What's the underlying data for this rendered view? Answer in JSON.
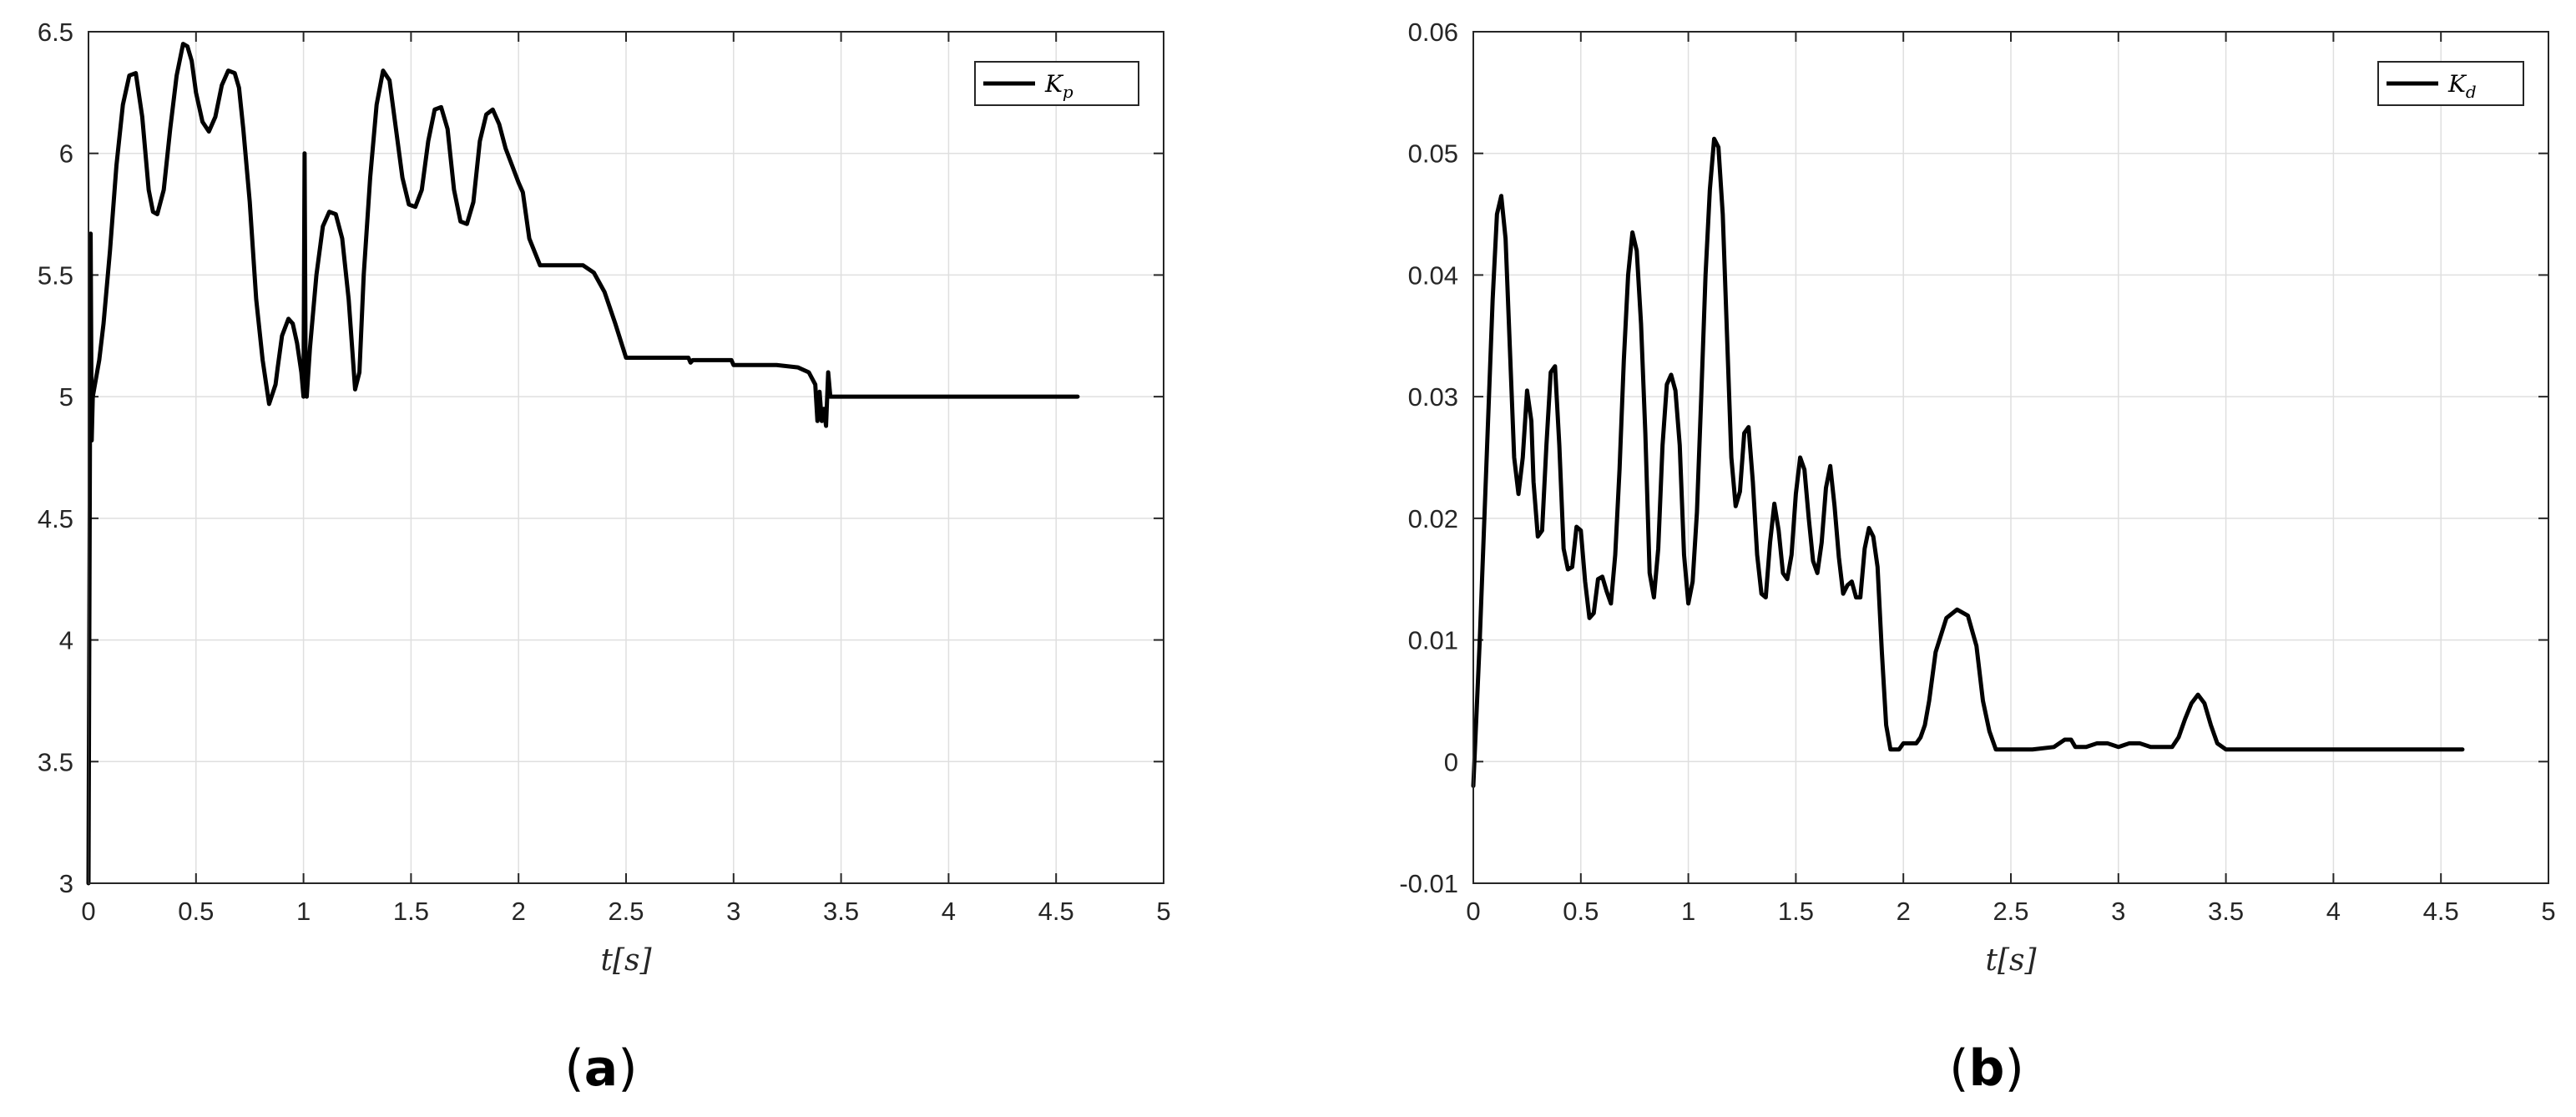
{
  "chart_data": [
    {
      "type": "line",
      "panel_label": "(a)",
      "panel_letter": "a",
      "xlabel": "t[s]",
      "ylabel": "",
      "xlim": [
        0,
        5
      ],
      "ylim": [
        3,
        6.5
      ],
      "xticks": [
        0,
        0.5,
        1,
        1.5,
        2,
        2.5,
        3,
        3.5,
        4,
        4.5,
        5
      ],
      "xtick_labels": [
        "0",
        "0.5",
        "1",
        "1.5",
        "2",
        "2.5",
        "3",
        "3.5",
        "4",
        "4.5",
        "5"
      ],
      "yticks": [
        3,
        3.5,
        4,
        4.5,
        5,
        5.5,
        6,
        6.5
      ],
      "ytick_labels": [
        "3",
        "3.5",
        "4",
        "4.5",
        "5",
        "5.5",
        "6",
        "6.5"
      ],
      "grid": true,
      "legend": "top-right",
      "series": [
        {
          "name": "Kp",
          "legend_main": "K",
          "legend_sub": "p",
          "color": "#000000",
          "x": [
            0,
            0.01,
            0.015,
            0.02,
            0.03,
            0.04,
            0.05,
            0.07,
            0.1,
            0.13,
            0.16,
            0.19,
            0.22,
            0.25,
            0.28,
            0.3,
            0.32,
            0.35,
            0.38,
            0.41,
            0.44,
            0.46,
            0.48,
            0.5,
            0.53,
            0.56,
            0.59,
            0.62,
            0.65,
            0.68,
            0.7,
            0.72,
            0.75,
            0.78,
            0.81,
            0.84,
            0.87,
            0.88,
            0.9,
            0.93,
            0.95,
            0.97,
            0.99,
            1.0,
            1.005,
            1.01,
            1.015,
            1.03,
            1.06,
            1.09,
            1.12,
            1.15,
            1.18,
            1.21,
            1.24,
            1.26,
            1.28,
            1.31,
            1.34,
            1.37,
            1.4,
            1.43,
            1.46,
            1.49,
            1.52,
            1.55,
            1.58,
            1.61,
            1.64,
            1.67,
            1.7,
            1.73,
            1.76,
            1.79,
            1.82,
            1.85,
            1.88,
            1.91,
            1.94,
            1.97,
            2.0,
            2.02,
            2.05,
            2.1,
            2.15,
            2.2,
            2.25,
            2.3,
            2.35,
            2.4,
            2.45,
            2.5,
            2.6,
            2.7,
            2.79,
            2.8,
            2.81,
            2.9,
            2.99,
            3.0,
            3.1,
            3.2,
            3.3,
            3.35,
            3.38,
            3.39,
            3.4,
            3.41,
            3.42,
            3.43,
            3.44,
            3.45,
            3.5,
            4.0,
            4.6
          ],
          "y": [
            3.0,
            5.67,
            4.82,
            5.0,
            5.05,
            5.1,
            5.15,
            5.3,
            5.6,
            5.95,
            6.2,
            6.32,
            6.33,
            6.15,
            5.85,
            5.76,
            5.75,
            5.85,
            6.1,
            6.32,
            6.45,
            6.44,
            6.38,
            6.25,
            6.13,
            6.09,
            6.15,
            6.28,
            6.34,
            6.33,
            6.27,
            6.1,
            5.8,
            5.4,
            5.15,
            4.97,
            5.05,
            5.12,
            5.25,
            5.32,
            5.3,
            5.22,
            5.1,
            5.0,
            6.0,
            5.05,
            5.0,
            5.2,
            5.5,
            5.7,
            5.76,
            5.75,
            5.65,
            5.4,
            5.03,
            5.1,
            5.5,
            5.9,
            6.2,
            6.34,
            6.3,
            6.1,
            5.9,
            5.79,
            5.78,
            5.85,
            6.05,
            6.18,
            6.19,
            6.1,
            5.85,
            5.72,
            5.71,
            5.8,
            6.05,
            6.16,
            6.18,
            6.12,
            6.02,
            5.95,
            5.88,
            5.84,
            5.65,
            5.54,
            5.54,
            5.54,
            5.54,
            5.54,
            5.51,
            5.43,
            5.3,
            5.16,
            5.16,
            5.16,
            5.16,
            5.14,
            5.15,
            5.15,
            5.15,
            5.13,
            5.13,
            5.13,
            5.12,
            5.1,
            5.05,
            4.9,
            5.02,
            4.9,
            4.95,
            4.88,
            5.1,
            5.0,
            5.0,
            5.0,
            5.0
          ]
        }
      ]
    },
    {
      "type": "line",
      "panel_label": "(b)",
      "panel_letter": "b",
      "xlabel": "t[s]",
      "ylabel": "",
      "xlim": [
        0,
        5
      ],
      "ylim": [
        -0.01,
        0.06
      ],
      "xticks": [
        0,
        0.5,
        1,
        1.5,
        2,
        2.5,
        3,
        3.5,
        4,
        4.5,
        5
      ],
      "xtick_labels": [
        "0",
        "0.5",
        "1",
        "1.5",
        "2",
        "2.5",
        "3",
        "3.5",
        "4",
        "4.5",
        "5"
      ],
      "yticks": [
        -0.01,
        0,
        0.01,
        0.02,
        0.03,
        0.04,
        0.05,
        0.06
      ],
      "ytick_labels": [
        "-0.01",
        "0",
        "0.01",
        "0.02",
        "0.03",
        "0.04",
        "0.05",
        "0.06"
      ],
      "grid": true,
      "legend": "top-right",
      "series": [
        {
          "name": "Kd",
          "legend_main": "K",
          "legend_sub": "d",
          "color": "#000000",
          "x": [
            0,
            0.03,
            0.06,
            0.09,
            0.11,
            0.13,
            0.15,
            0.17,
            0.19,
            0.21,
            0.23,
            0.25,
            0.27,
            0.28,
            0.3,
            0.32,
            0.34,
            0.36,
            0.38,
            0.4,
            0.42,
            0.44,
            0.46,
            0.48,
            0.5,
            0.52,
            0.54,
            0.56,
            0.58,
            0.6,
            0.62,
            0.64,
            0.66,
            0.68,
            0.7,
            0.72,
            0.74,
            0.76,
            0.78,
            0.8,
            0.82,
            0.84,
            0.86,
            0.88,
            0.9,
            0.92,
            0.94,
            0.96,
            0.98,
            1.0,
            1.02,
            1.04,
            1.06,
            1.08,
            1.1,
            1.12,
            1.14,
            1.16,
            1.18,
            1.2,
            1.22,
            1.24,
            1.26,
            1.28,
            1.3,
            1.32,
            1.34,
            1.36,
            1.38,
            1.4,
            1.42,
            1.44,
            1.46,
            1.48,
            1.5,
            1.52,
            1.54,
            1.56,
            1.58,
            1.6,
            1.62,
            1.64,
            1.66,
            1.68,
            1.7,
            1.72,
            1.74,
            1.76,
            1.78,
            1.8,
            1.82,
            1.84,
            1.86,
            1.88,
            1.9,
            1.92,
            1.94,
            1.96,
            1.98,
            2.0,
            2.02,
            2.04,
            2.06,
            2.08,
            2.1,
            2.12,
            2.15,
            2.2,
            2.25,
            2.3,
            2.34,
            2.37,
            2.4,
            2.43,
            2.46,
            2.49,
            2.52,
            2.55,
            2.6,
            2.7,
            2.75,
            2.78,
            2.8,
            2.82,
            2.85,
            2.9,
            2.95,
            3.0,
            3.05,
            3.1,
            3.15,
            3.2,
            3.25,
            3.28,
            3.31,
            3.34,
            3.37,
            3.4,
            3.43,
            3.46,
            3.5,
            3.6,
            4.0,
            4.6
          ],
          "y": [
            -0.002,
            0.01,
            0.024,
            0.038,
            0.045,
            0.0465,
            0.043,
            0.034,
            0.025,
            0.022,
            0.025,
            0.0305,
            0.028,
            0.023,
            0.0185,
            0.019,
            0.026,
            0.032,
            0.0325,
            0.026,
            0.0175,
            0.0158,
            0.016,
            0.0193,
            0.019,
            0.0148,
            0.0118,
            0.0122,
            0.015,
            0.0152,
            0.014,
            0.013,
            0.017,
            0.024,
            0.033,
            0.04,
            0.0435,
            0.042,
            0.036,
            0.027,
            0.0155,
            0.0135,
            0.0175,
            0.026,
            0.031,
            0.0318,
            0.0305,
            0.026,
            0.017,
            0.013,
            0.0148,
            0.0205,
            0.03,
            0.04,
            0.047,
            0.0512,
            0.0505,
            0.045,
            0.035,
            0.025,
            0.021,
            0.0222,
            0.027,
            0.0275,
            0.023,
            0.017,
            0.0138,
            0.0135,
            0.018,
            0.0212,
            0.019,
            0.0155,
            0.015,
            0.017,
            0.022,
            0.025,
            0.024,
            0.02,
            0.0165,
            0.0155,
            0.018,
            0.0225,
            0.0243,
            0.021,
            0.0168,
            0.0138,
            0.0145,
            0.0148,
            0.0135,
            0.0135,
            0.0175,
            0.0192,
            0.0185,
            0.016,
            0.009,
            0.003,
            0.001,
            0.001,
            0.001,
            0.0015,
            0.0015,
            0.0015,
            0.0015,
            0.002,
            0.003,
            0.005,
            0.009,
            0.0118,
            0.0125,
            0.012,
            0.0095,
            0.005,
            0.0025,
            0.001,
            0.001,
            0.001,
            0.001,
            0.001,
            0.001,
            0.0012,
            0.0018,
            0.0018,
            0.0012,
            0.0012,
            0.0012,
            0.0015,
            0.0015,
            0.0012,
            0.0015,
            0.0015,
            0.0012,
            0.0012,
            0.0012,
            0.002,
            0.0035,
            0.0048,
            0.0055,
            0.0048,
            0.003,
            0.0015,
            0.001,
            0.001,
            0.001,
            0.001
          ]
        }
      ]
    }
  ]
}
